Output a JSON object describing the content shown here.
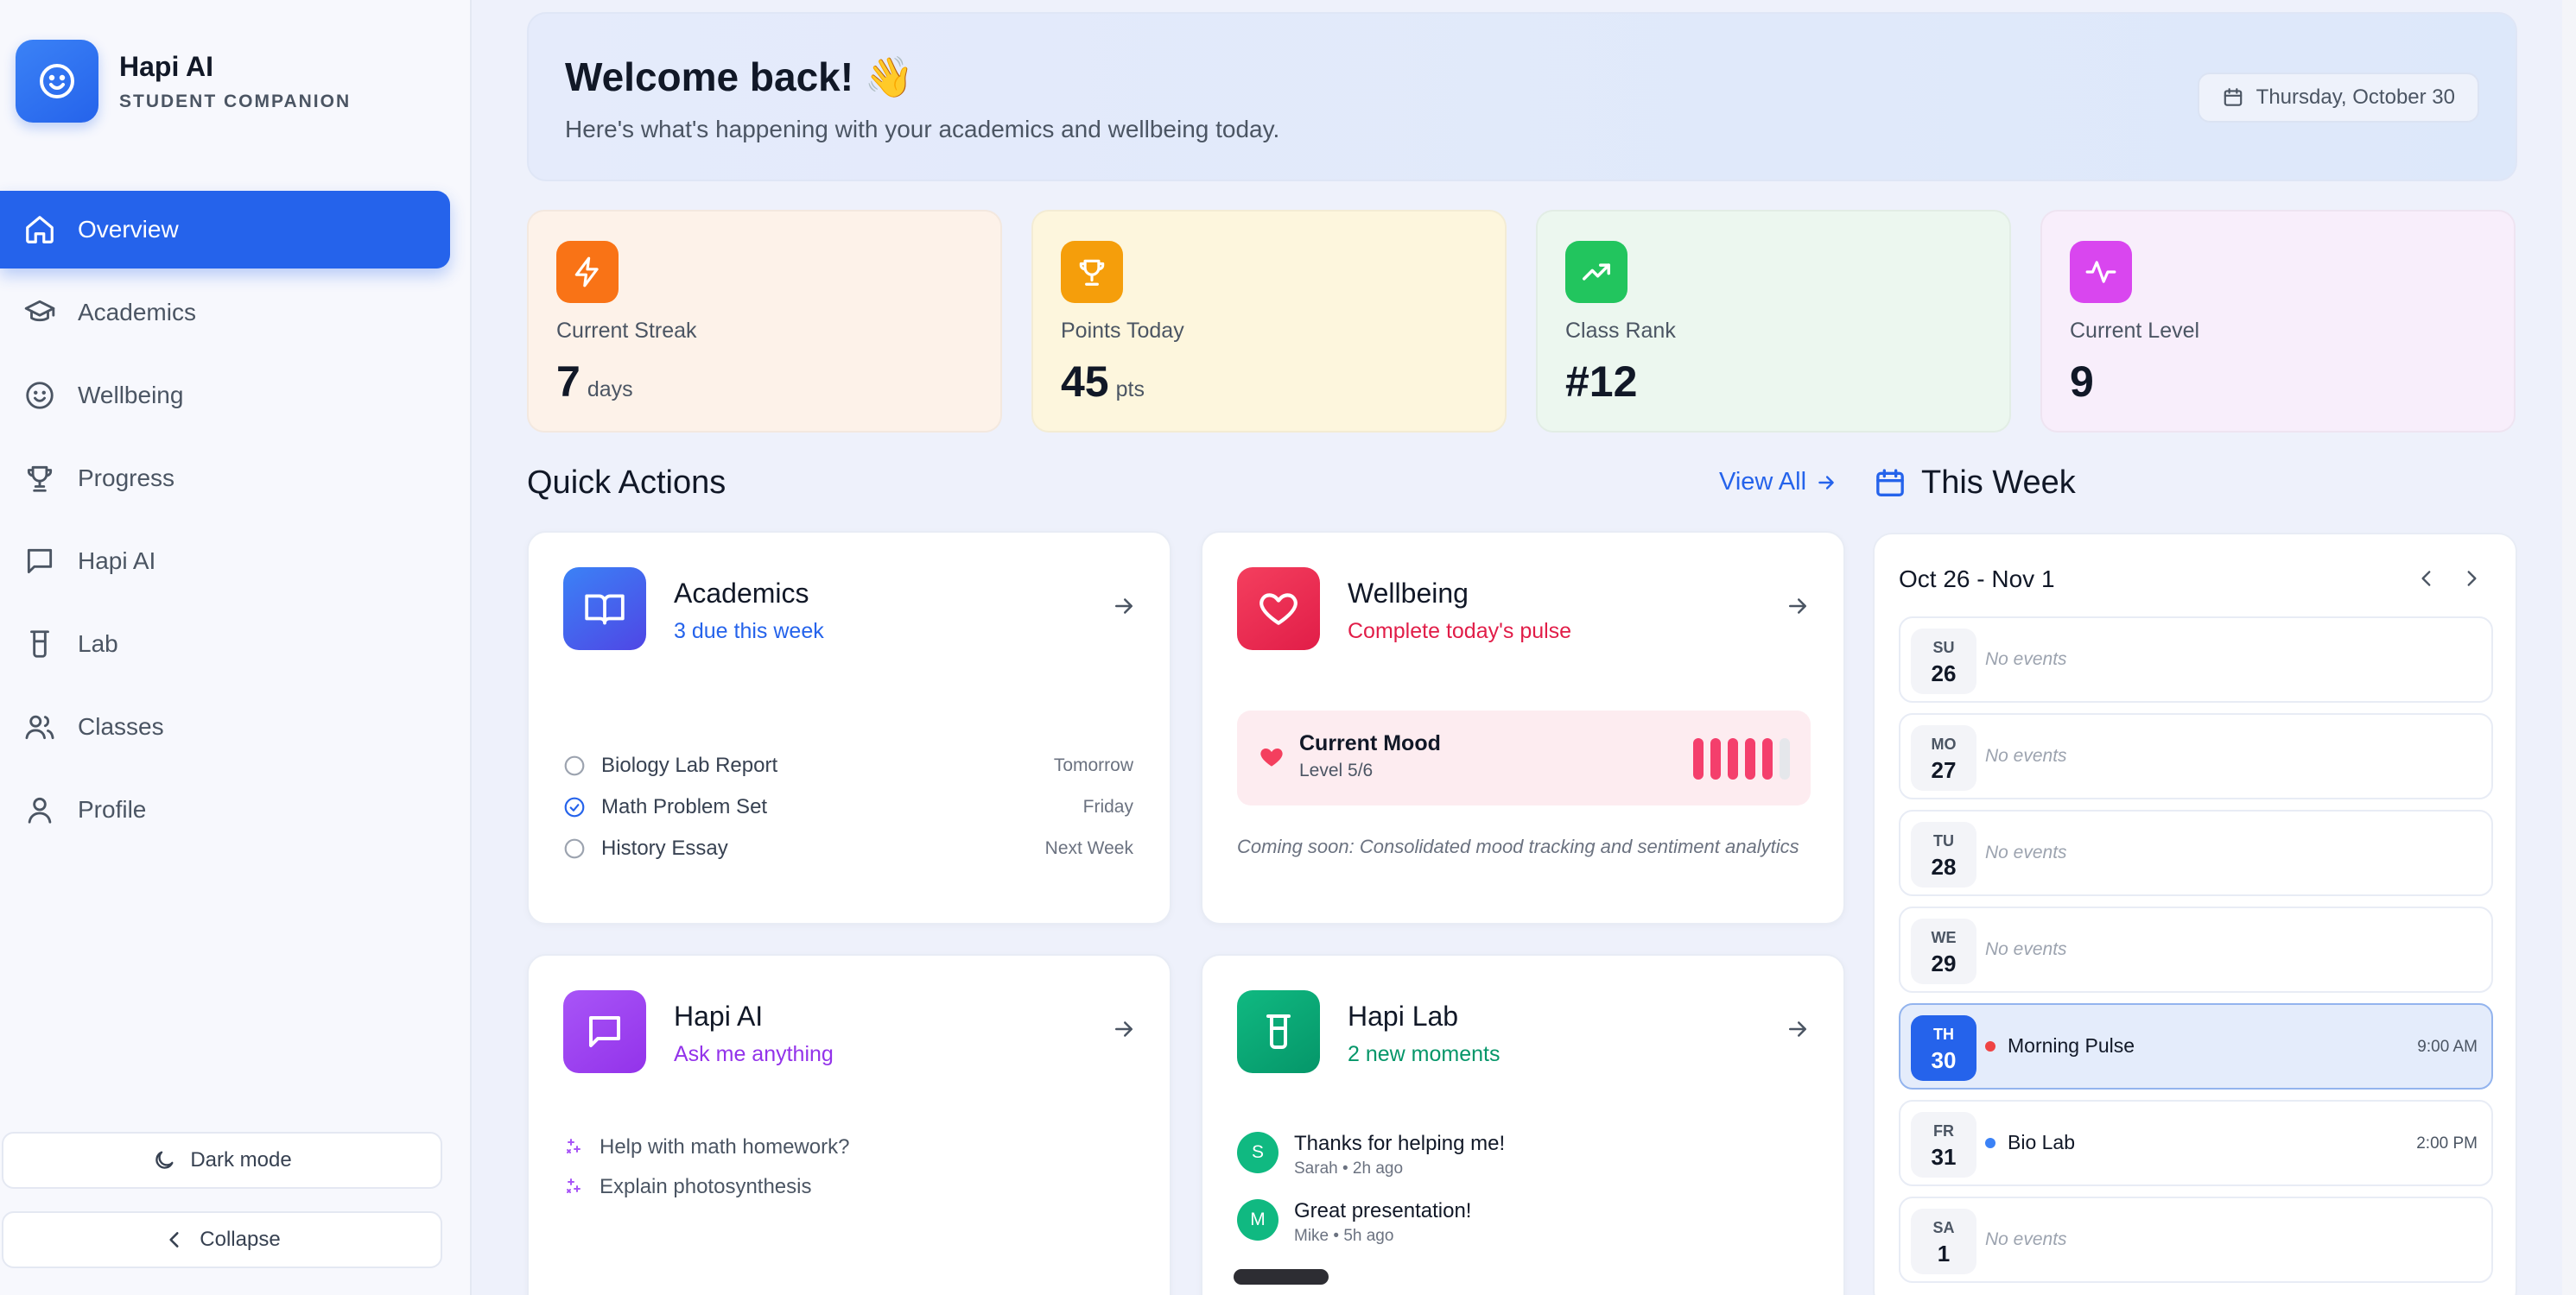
{
  "brand": {
    "title": "Hapi AI",
    "subtitle": "STUDENT COMPANION",
    "logo_icon": "smile-icon"
  },
  "sidebar": {
    "items": [
      {
        "label": "Overview",
        "icon": "home-icon",
        "active": true
      },
      {
        "label": "Academics",
        "icon": "graduation-cap-icon"
      },
      {
        "label": "Wellbeing",
        "icon": "smile-icon"
      },
      {
        "label": "Progress",
        "icon": "trophy-icon"
      },
      {
        "label": "Hapi AI",
        "icon": "message-icon"
      },
      {
        "label": "Lab",
        "icon": "beaker-icon"
      },
      {
        "label": "Classes",
        "icon": "users-icon"
      },
      {
        "label": "Profile",
        "icon": "user-icon"
      }
    ],
    "dark_mode_label": "Dark mode",
    "collapse_label": "Collapse"
  },
  "welcome": {
    "title": "Welcome back! 👋",
    "subtitle": "Here's what's happening with your academics and wellbeing today.",
    "date": "Thursday, October 30"
  },
  "stats": [
    {
      "label": "Current Streak",
      "value": "7",
      "unit": "days",
      "icon": "zap-icon",
      "color": "#f97316"
    },
    {
      "label": "Points Today",
      "value": "45",
      "unit": "pts",
      "icon": "trophy-icon",
      "color": "#f59e0b"
    },
    {
      "label": "Class Rank",
      "value": "#12",
      "unit": "",
      "icon": "trending-up-icon",
      "color": "#22c55e"
    },
    {
      "label": "Current Level",
      "value": "9",
      "unit": "",
      "icon": "activity-icon",
      "color": "#d946ef"
    }
  ],
  "quick_actions": {
    "title": "Quick Actions",
    "view_all": "View All",
    "academics": {
      "title": "Academics",
      "subtitle": "3 due this week",
      "tasks": [
        {
          "name": "Biology Lab Report",
          "due": "Tomorrow",
          "done": false
        },
        {
          "name": "Math Problem Set",
          "due": "Friday",
          "done": true
        },
        {
          "name": "History Essay",
          "due": "Next Week",
          "done": false
        }
      ]
    },
    "wellbeing": {
      "title": "Wellbeing",
      "subtitle": "Complete today's pulse",
      "mood_title": "Current Mood",
      "mood_level": "Level 5/6",
      "mood_value": 5,
      "mood_max": 6,
      "coming_soon": "Coming soon: Consolidated mood tracking and sentiment analytics"
    },
    "hapi_ai": {
      "title": "Hapi AI",
      "subtitle": "Ask me anything",
      "prompts": [
        "Help with math homework?",
        "Explain photosynthesis"
      ]
    },
    "hapi_lab": {
      "title": "Hapi Lab",
      "subtitle": "2 new moments",
      "messages": [
        {
          "initial": "S",
          "text": "Thanks for helping me!",
          "meta": "Sarah • 2h ago"
        },
        {
          "initial": "M",
          "text": "Great presentation!",
          "meta": "Mike • 5h ago"
        }
      ]
    }
  },
  "week": {
    "title": "This Week",
    "range": "Oct 26 - Nov 1",
    "days": [
      {
        "dow": "SU",
        "date": "26",
        "event": "No events"
      },
      {
        "dow": "MO",
        "date": "27",
        "event": "No events"
      },
      {
        "dow": "TU",
        "date": "28",
        "event": "No events"
      },
      {
        "dow": "WE",
        "date": "29",
        "event": "No events"
      },
      {
        "dow": "TH",
        "date": "30",
        "event": "Morning Pulse",
        "time": "9:00 AM",
        "dot": "#ef4444",
        "today": true
      },
      {
        "dow": "FR",
        "date": "31",
        "event": "Bio Lab",
        "time": "2:00 PM",
        "dot": "#3b82f6"
      },
      {
        "dow": "SA",
        "date": "1",
        "event": "No events"
      }
    ]
  }
}
